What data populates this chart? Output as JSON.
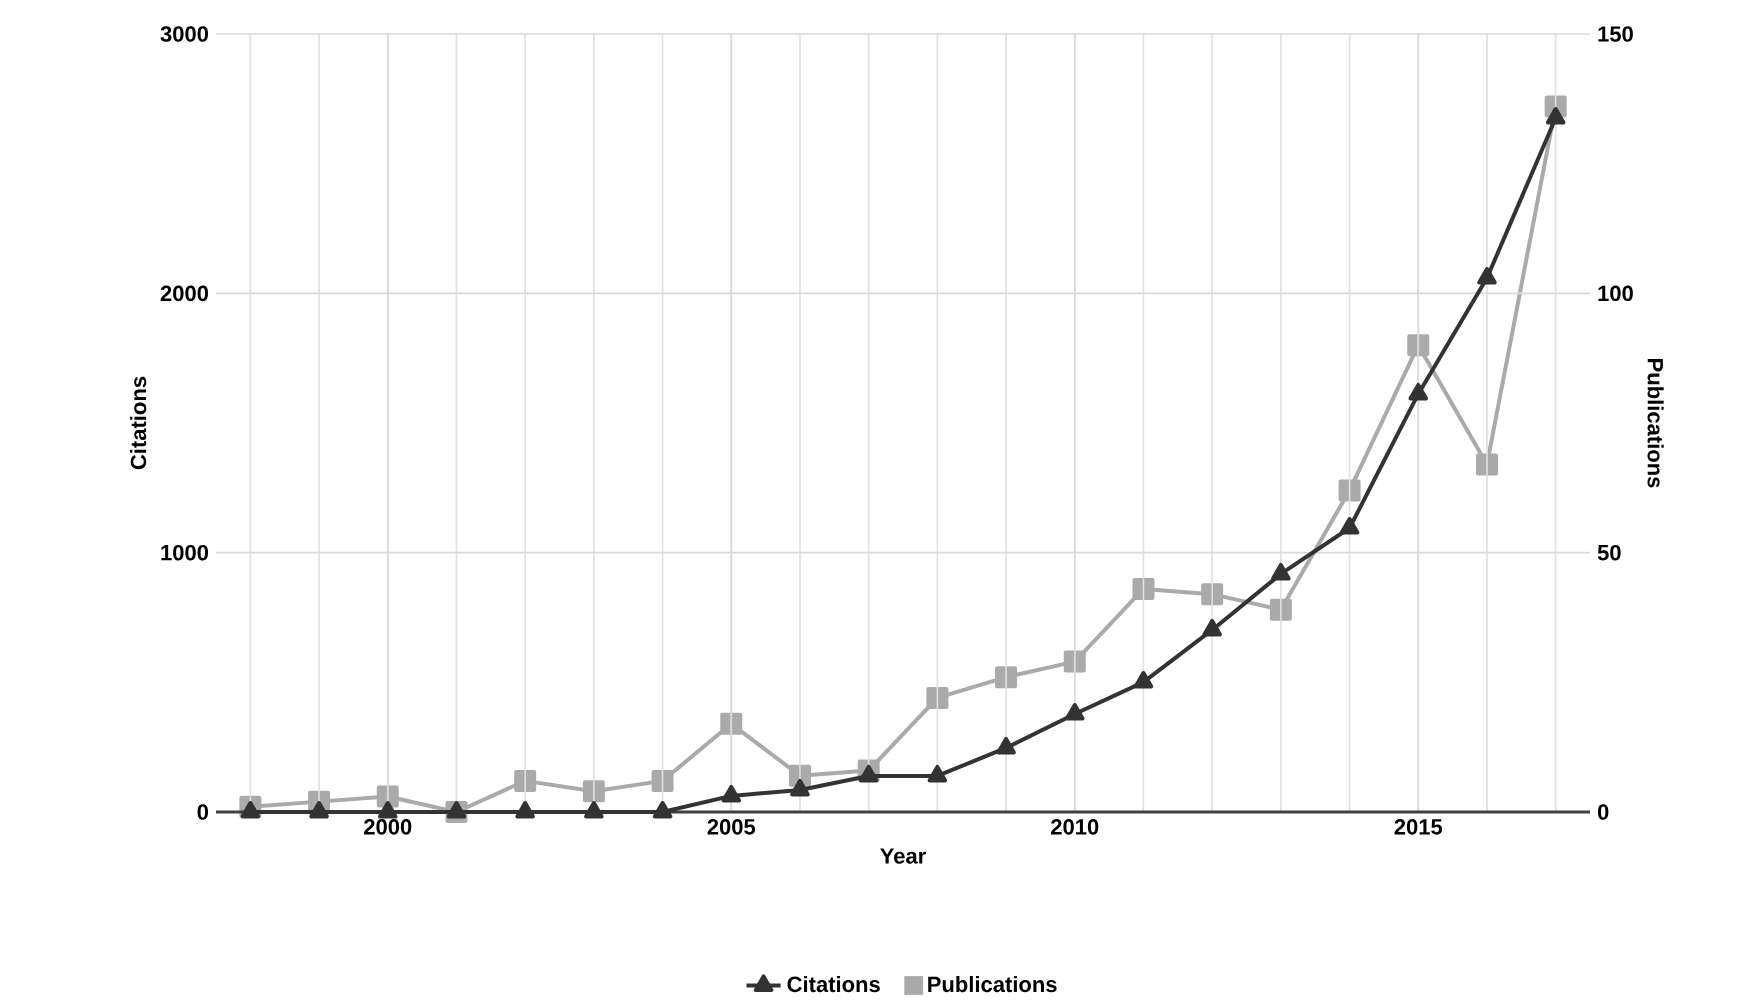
{
  "chart_data": {
    "type": "line",
    "xlabel": "Year",
    "ylabel": "Citations",
    "y2label": "Publications",
    "x": [
      1998,
      1999,
      2000,
      2001,
      2002,
      2003,
      2004,
      2005,
      2006,
      2007,
      2008,
      2009,
      2010,
      2011,
      2012,
      2013,
      2014,
      2015,
      2016,
      2017
    ],
    "series": [
      {
        "name": "Citations",
        "color": "#333333",
        "marker": "triangle",
        "values": [
          0,
          0,
          0,
          0,
          0,
          0,
          0,
          62,
          85,
          139,
          139,
          247,
          378,
          501,
          702,
          918,
          1095,
          1612,
          2059,
          2676
        ]
      },
      {
        "name": "Publications",
        "color": "#aaaaaa",
        "marker": "square",
        "axis": "y2",
        "values": [
          1,
          2,
          3,
          0,
          6,
          4,
          6,
          17,
          7,
          8,
          22,
          26,
          29,
          43,
          42,
          39,
          62,
          90,
          67,
          136
        ]
      }
    ],
    "xlim": [
      1997.5,
      2017.5
    ],
    "xticks": [
      2000,
      2005,
      2010,
      2015
    ],
    "ylim": [
      0,
      3000
    ],
    "yticks": [
      0,
      1000,
      2000,
      3000
    ],
    "y2lim": [
      0,
      150
    ],
    "y2ticks": [
      0,
      50,
      100,
      150
    ],
    "grid": true,
    "legend": "bottom",
    "line_style": "solid"
  }
}
